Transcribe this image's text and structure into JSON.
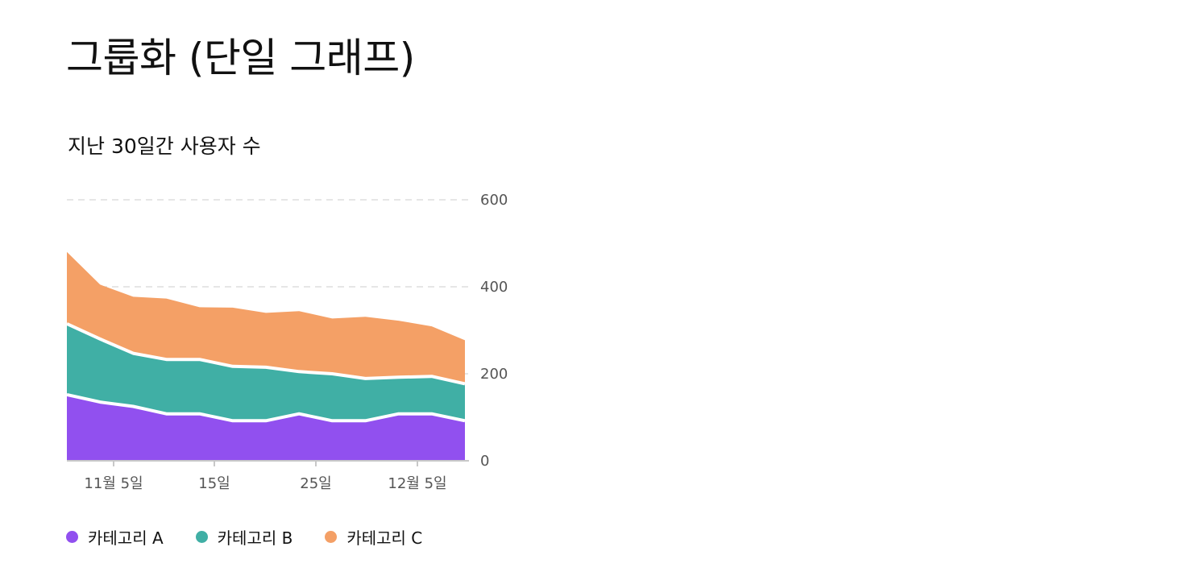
{
  "page": {
    "title": "그룹화 (단일 그래프)"
  },
  "chart_data": {
    "type": "area",
    "stacked": true,
    "subtitle": "지난 30일간 사용자 수",
    "x_tick_labels": [
      "11월 5일",
      "15일",
      "25일",
      "12월 5일"
    ],
    "y_ticks": [
      0,
      200,
      400,
      600
    ],
    "ylim": [
      0,
      600
    ],
    "grid": "horizontal-dashed",
    "legend_position": "bottom-left",
    "series": [
      {
        "name": "카테고리 A",
        "color": "#9150EF",
        "values": [
          152,
          135,
          125,
          108,
          108,
          92,
          92,
          108,
          92,
          92,
          108,
          108,
          92
        ]
      },
      {
        "name": "카테고리 B",
        "color": "#40AFA5",
        "values": [
          163,
          145,
          122,
          125,
          125,
          125,
          123,
          97,
          108,
          97,
          84,
          86,
          85
        ]
      },
      {
        "name": "카테고리 C",
        "color": "#F4A066",
        "values": [
          165,
          125,
          130,
          140,
          120,
          135,
          125,
          139,
          127,
          142,
          130,
          115,
          100
        ]
      }
    ]
  }
}
